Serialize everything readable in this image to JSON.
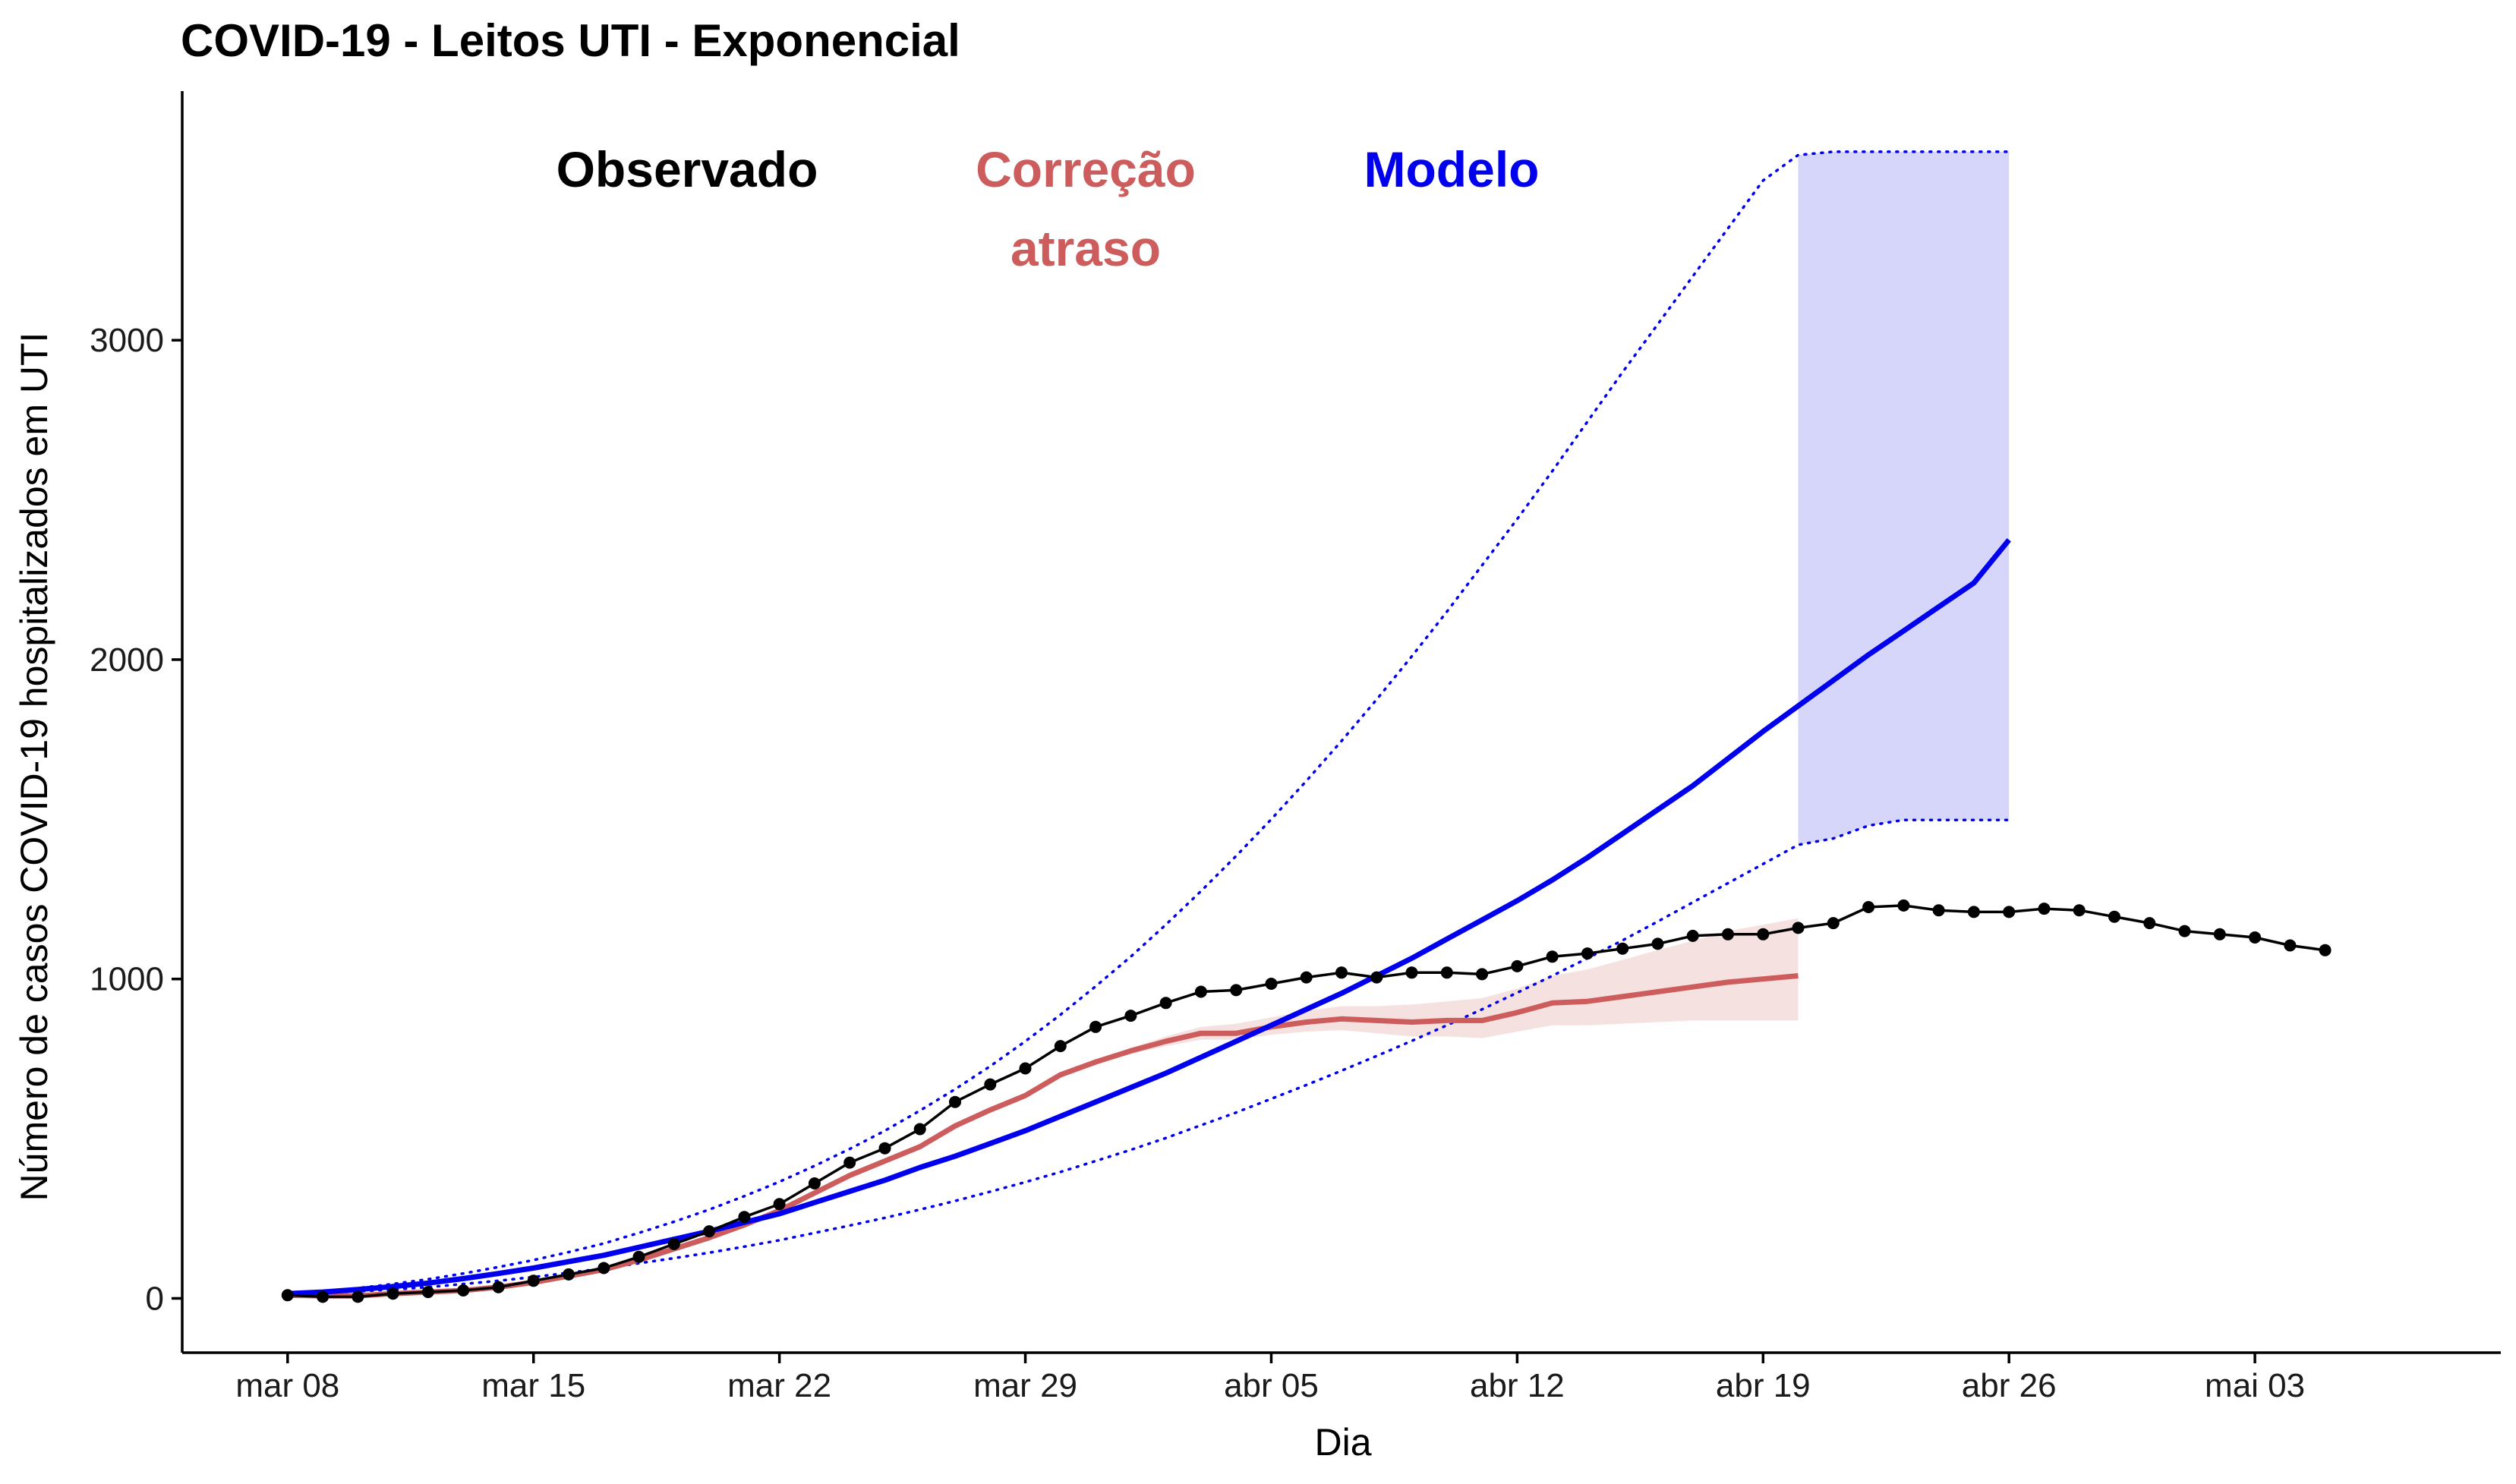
{
  "chart_data": {
    "type": "line",
    "title": "COVID-19 - Leitos UTI - Exponencial",
    "xlabel": "Dia",
    "ylabel": "Número de casos COVID-19 hospitalizados em UTI",
    "x_start": "2020-03-08",
    "x_end": "2020-05-05",
    "xlim": [
      "2020-03-05",
      "2020-05-10"
    ],
    "ylim": [
      -170,
      3780
    ],
    "x_ticks": [
      {
        "date": "2020-03-08",
        "label": "mar 08"
      },
      {
        "date": "2020-03-15",
        "label": "mar 15"
      },
      {
        "date": "2020-03-22",
        "label": "mar 22"
      },
      {
        "date": "2020-03-29",
        "label": "mar 29"
      },
      {
        "date": "2020-04-05",
        "label": "abr 05"
      },
      {
        "date": "2020-04-12",
        "label": "abr 12"
      },
      {
        "date": "2020-04-19",
        "label": "abr 19"
      },
      {
        "date": "2020-04-26",
        "label": "abr 26"
      },
      {
        "date": "2020-05-03",
        "label": "mai 03"
      }
    ],
    "y_ticks": [
      {
        "value": 0,
        "label": "0"
      },
      {
        "value": 1000,
        "label": "1000"
      },
      {
        "value": 2000,
        "label": "2000"
      },
      {
        "value": 3000,
        "label": "3000"
      }
    ],
    "grid": false,
    "legend": "annotations at top",
    "annotations": {
      "observado": {
        "text": "Observado",
        "color": "#000000"
      },
      "correcao_line1": {
        "text": "Correção",
        "color": "#CD5C5C"
      },
      "correcao_line2": {
        "text": "atraso",
        "color": "#CD5C5C"
      },
      "modelo": {
        "text": "Modelo",
        "color": "#0000EE"
      }
    },
    "colors": {
      "observado": "#000000",
      "correcao": "#CD5C5C",
      "correcao_band": "#F4DCDC",
      "modelo": "#0000EE",
      "modelo_band": "#D6D6FA",
      "axis": "#000000"
    },
    "series": [
      {
        "name": "Observado",
        "style": "line-points",
        "values": [
          10,
          5,
          5,
          15,
          20,
          25,
          35,
          55,
          75,
          95,
          130,
          170,
          210,
          255,
          295,
          360,
          425,
          470,
          530,
          615,
          670,
          720,
          790,
          850,
          885,
          925,
          960,
          965,
          985,
          1005,
          1020,
          1005,
          1020,
          1020,
          1015,
          1040,
          1070,
          1080,
          1095,
          1110,
          1135,
          1140,
          1140,
          1160,
          1175,
          1225,
          1230,
          1215,
          1210,
          1210,
          1220,
          1215,
          1195,
          1175,
          1150,
          1140,
          1130,
          1105,
          1090
        ]
      },
      {
        "name": "Correção atraso",
        "style": "line",
        "values": [
          10,
          8,
          8,
          15,
          20,
          25,
          35,
          50,
          70,
          90,
          120,
          155,
          190,
          230,
          275,
          330,
          385,
          430,
          475,
          540,
          590,
          635,
          700,
          740,
          775,
          805,
          830,
          830,
          850,
          865,
          875,
          870,
          865,
          870,
          870,
          895,
          925,
          930,
          945,
          960,
          975,
          990,
          1000,
          1010
        ],
        "lower": [
          10,
          8,
          8,
          15,
          20,
          25,
          35,
          50,
          70,
          90,
          120,
          155,
          190,
          230,
          275,
          330,
          385,
          430,
          475,
          540,
          590,
          635,
          700,
          735,
          765,
          790,
          810,
          810,
          825,
          835,
          840,
          830,
          820,
          820,
          815,
          835,
          855,
          855,
          860,
          865,
          870,
          870,
          870,
          870
        ],
        "upper": [
          10,
          8,
          8,
          15,
          20,
          25,
          35,
          50,
          70,
          90,
          120,
          155,
          190,
          230,
          275,
          330,
          385,
          430,
          475,
          540,
          590,
          635,
          700,
          745,
          785,
          820,
          850,
          860,
          880,
          900,
          915,
          915,
          920,
          930,
          940,
          970,
          1010,
          1030,
          1060,
          1090,
          1120,
          1150,
          1170,
          1190
        ]
      },
      {
        "name": "Modelo",
        "style": "line",
        "values": [
          15,
          20,
          28,
          37,
          48,
          62,
          78,
          95,
          115,
          135,
          160,
          185,
          210,
          238,
          265,
          300,
          335,
          370,
          410,
          445,
          485,
          525,
          570,
          615,
          660,
          705,
          755,
          805,
          855,
          905,
          955,
          1010,
          1065,
          1125,
          1185,
          1245,
          1310,
          1380,
          1455,
          1530,
          1605,
          1690,
          1775,
          1855,
          1935,
          2015,
          2090,
          2165,
          2240,
          2375
        ],
        "lower": [
          15,
          18,
          22,
          28,
          35,
          45,
          55,
          67,
          80,
          94,
          110,
          126,
          143,
          162,
          182,
          205,
          228,
          252,
          278,
          305,
          334,
          364,
          396,
          430,
          465,
          502,
          542,
          582,
          625,
          668,
          713,
          759,
          806,
          855,
          905,
          957,
          1010,
          1065,
          1121,
          1180,
          1240,
          1300,
          1360,
          1420,
          1440,
          1480,
          1498,
          1498,
          1498,
          1498
        ],
        "upper": [
          15,
          22,
          32,
          45,
          60,
          78,
          98,
          120,
          145,
          172,
          205,
          240,
          278,
          320,
          365,
          415,
          468,
          525,
          588,
          655,
          727,
          805,
          888,
          977,
          1070,
          1170,
          1275,
          1385,
          1500,
          1620,
          1745,
          1875,
          2010,
          2150,
          2295,
          2440,
          2590,
          2745,
          2900,
          3050,
          3200,
          3350,
          3500,
          3580,
          3590,
          3590,
          3590,
          3590,
          3590,
          3590
        ],
        "band_start_index": 43
      }
    ]
  }
}
